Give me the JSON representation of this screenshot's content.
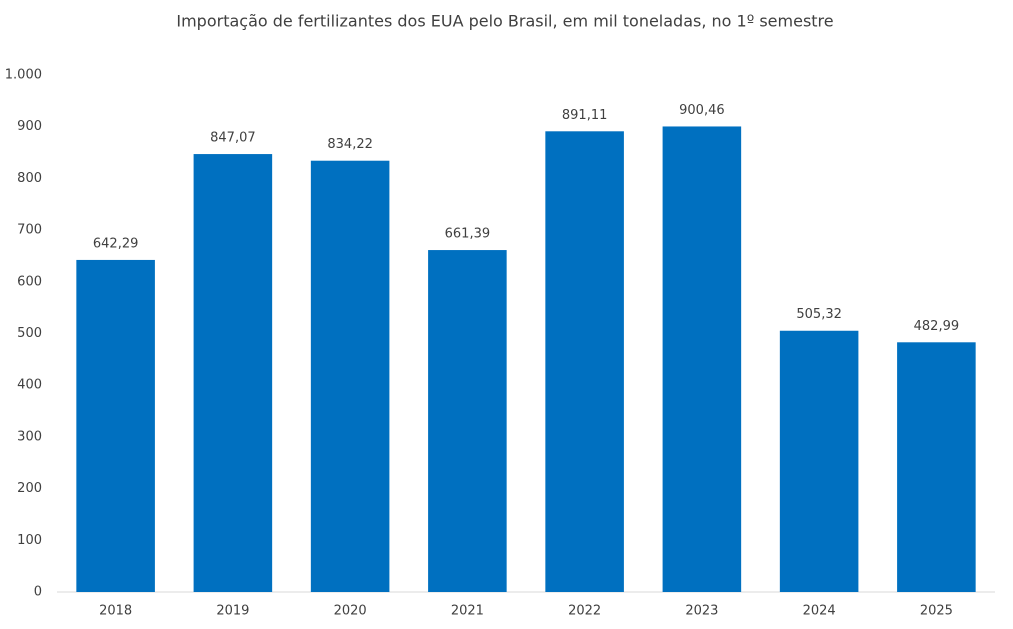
{
  "chart_data": {
    "type": "bar",
    "title": "Importação de fertilizantes dos EUA pelo Brasil, em mil toneladas, no 1º semestre",
    "categories": [
      "2018",
      "2019",
      "2020",
      "2021",
      "2022",
      "2023",
      "2024",
      "2025"
    ],
    "values": [
      642.29,
      847.07,
      834.22,
      661.39,
      891.11,
      900.46,
      505.32,
      482.99
    ],
    "value_labels": [
      "642,29",
      "847,07",
      "834,22",
      "661,39",
      "891,11",
      "900,46",
      "505,32",
      "482,99"
    ],
    "color": "#0070c0",
    "ylim": [
      0,
      1000
    ],
    "yticks": [
      0,
      100,
      200,
      300,
      400,
      500,
      600,
      700,
      800,
      900,
      {
        "value": 1000,
        "label": "1.000"
      }
    ],
    "grid": false
  }
}
